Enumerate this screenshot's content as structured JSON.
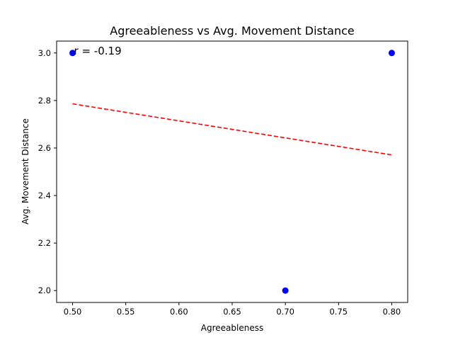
{
  "chart_data": {
    "type": "scatter",
    "title": "Agreeableness vs Avg. Movement Distance",
    "xlabel": "Agreeableness",
    "ylabel": "Avg. Movement Distance",
    "xlim": [
      0.485,
      0.815
    ],
    "ylim": [
      1.95,
      3.05
    ],
    "xticks": [
      0.5,
      0.55,
      0.6,
      0.65,
      0.7,
      0.75,
      0.8
    ],
    "xtick_labels": [
      "0.50",
      "0.55",
      "0.60",
      "0.65",
      "0.70",
      "0.75",
      "0.80"
    ],
    "yticks": [
      2.0,
      2.2,
      2.4,
      2.6,
      2.8,
      3.0
    ],
    "ytick_labels": [
      "2.0",
      "2.2",
      "2.4",
      "2.6",
      "2.8",
      "3.0"
    ],
    "points": [
      {
        "x": 0.5,
        "y": 3.0
      },
      {
        "x": 0.7,
        "y": 2.0
      },
      {
        "x": 0.8,
        "y": 3.0
      }
    ],
    "trendline": {
      "x": [
        0.5,
        0.8
      ],
      "y": [
        2.786,
        2.571
      ]
    },
    "annotation": {
      "text": "r = -0.19",
      "x": 0.5,
      "y": 3.0
    },
    "grid": false,
    "colors": {
      "points": "#0000ff",
      "trendline": "#ff0000"
    }
  }
}
